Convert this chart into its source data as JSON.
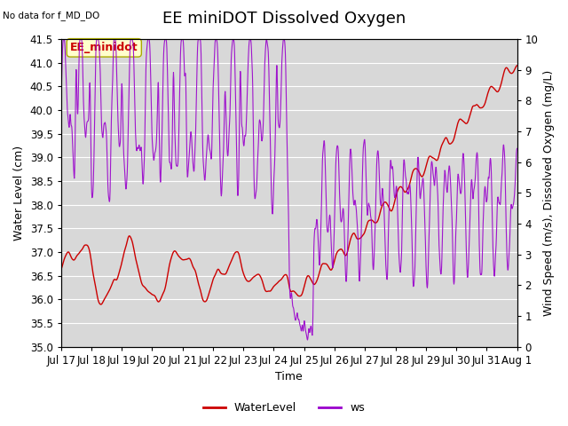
{
  "title": "EE miniDOT Dissolved Oxygen",
  "top_left_text": "No data for f_MD_DO",
  "annotation_text": "EE_minidot",
  "xlabel": "Time",
  "ylabel_left": "Water Level (cm)",
  "ylabel_right": "Wind Speed (m/s), Dissolved Oxygen (mg/L)",
  "ylim_left": [
    35.0,
    41.5
  ],
  "ylim_right": [
    0.0,
    10.0
  ],
  "legend_labels": [
    "WaterLevel",
    "ws"
  ],
  "legend_colors": [
    "#cc0000",
    "#9900cc"
  ],
  "background_color": "#ffffff",
  "plot_bg_color": "#d8d8d8",
  "xtick_labels": [
    "Jul 17",
    "Jul 18",
    "Jul 19",
    "Jul 20",
    "Jul 21",
    "Jul 22",
    "Jul 23",
    "Jul 24",
    "Jul 25",
    "Jul 26",
    "Jul 27",
    "Jul 28",
    "Jul 29",
    "Jul 30",
    "Jul 31",
    "Aug 1"
  ],
  "title_fontsize": 13,
  "axis_fontsize": 9,
  "tick_fontsize": 8.5
}
